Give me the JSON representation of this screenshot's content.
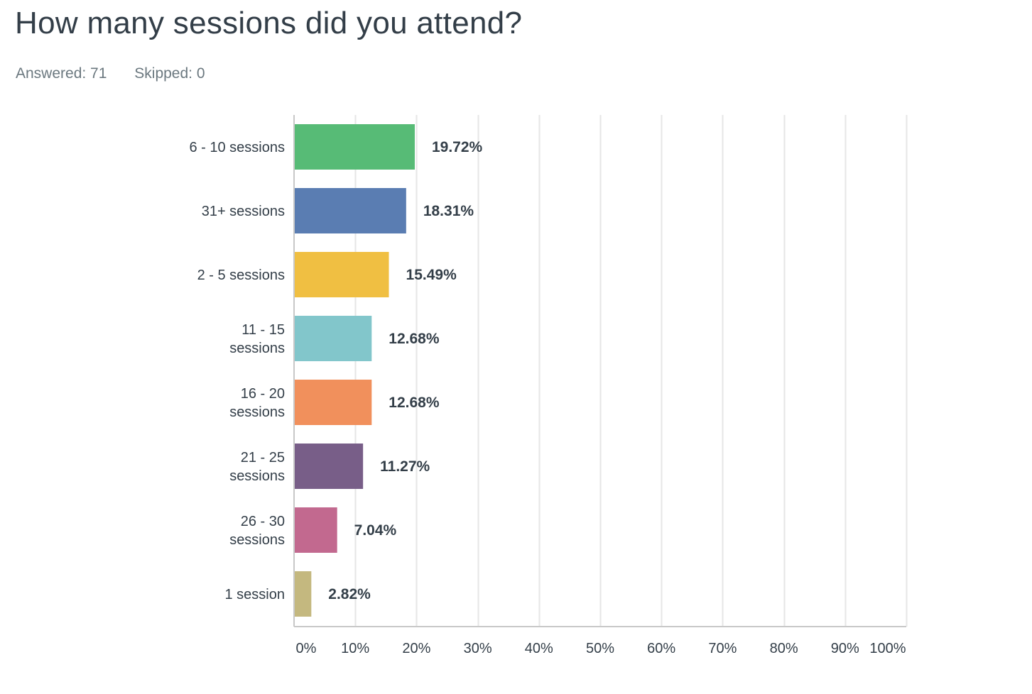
{
  "question": {
    "title": "How many sessions did you attend?",
    "answered_label": "Answered: 71",
    "skipped_label": "Skipped: 0"
  },
  "chart_data": {
    "type": "bar",
    "orientation": "horizontal",
    "title": "",
    "xlabel": "",
    "ylabel": "",
    "xlim": [
      0,
      100
    ],
    "grid": true,
    "categories": [
      "6 - 10 sessions",
      "31+ sessions",
      "2 - 5 sessions",
      "11 - 15 sessions",
      "16 - 20 sessions",
      "21 - 25 sessions",
      "26 - 30 sessions",
      "1 session"
    ],
    "category_lines": [
      [
        "6 - 10 sessions"
      ],
      [
        "31+ sessions"
      ],
      [
        "2 - 5 sessions"
      ],
      [
        "11 - 15",
        "sessions"
      ],
      [
        "16 - 20",
        "sessions"
      ],
      [
        "21 - 25",
        "sessions"
      ],
      [
        "26 - 30",
        "sessions"
      ],
      [
        "1 session"
      ]
    ],
    "values": [
      19.72,
      18.31,
      15.49,
      12.68,
      12.68,
      11.27,
      7.04,
      2.82
    ],
    "value_labels": [
      "19.72%",
      "18.31%",
      "15.49%",
      "12.68%",
      "12.68%",
      "11.27%",
      "7.04%",
      "2.82%"
    ],
    "colors": [
      "#57bb76",
      "#5a7db2",
      "#f0bf42",
      "#82c6cb",
      "#f1905c",
      "#785e88",
      "#c2698f",
      "#c4b87f"
    ],
    "ticks": [
      0,
      10,
      20,
      30,
      40,
      50,
      60,
      70,
      80,
      90,
      100
    ],
    "tick_labels": [
      "0%",
      "10%",
      "20%",
      "30%",
      "40%",
      "50%",
      "60%",
      "70%",
      "80%",
      "90%",
      "100%"
    ]
  }
}
